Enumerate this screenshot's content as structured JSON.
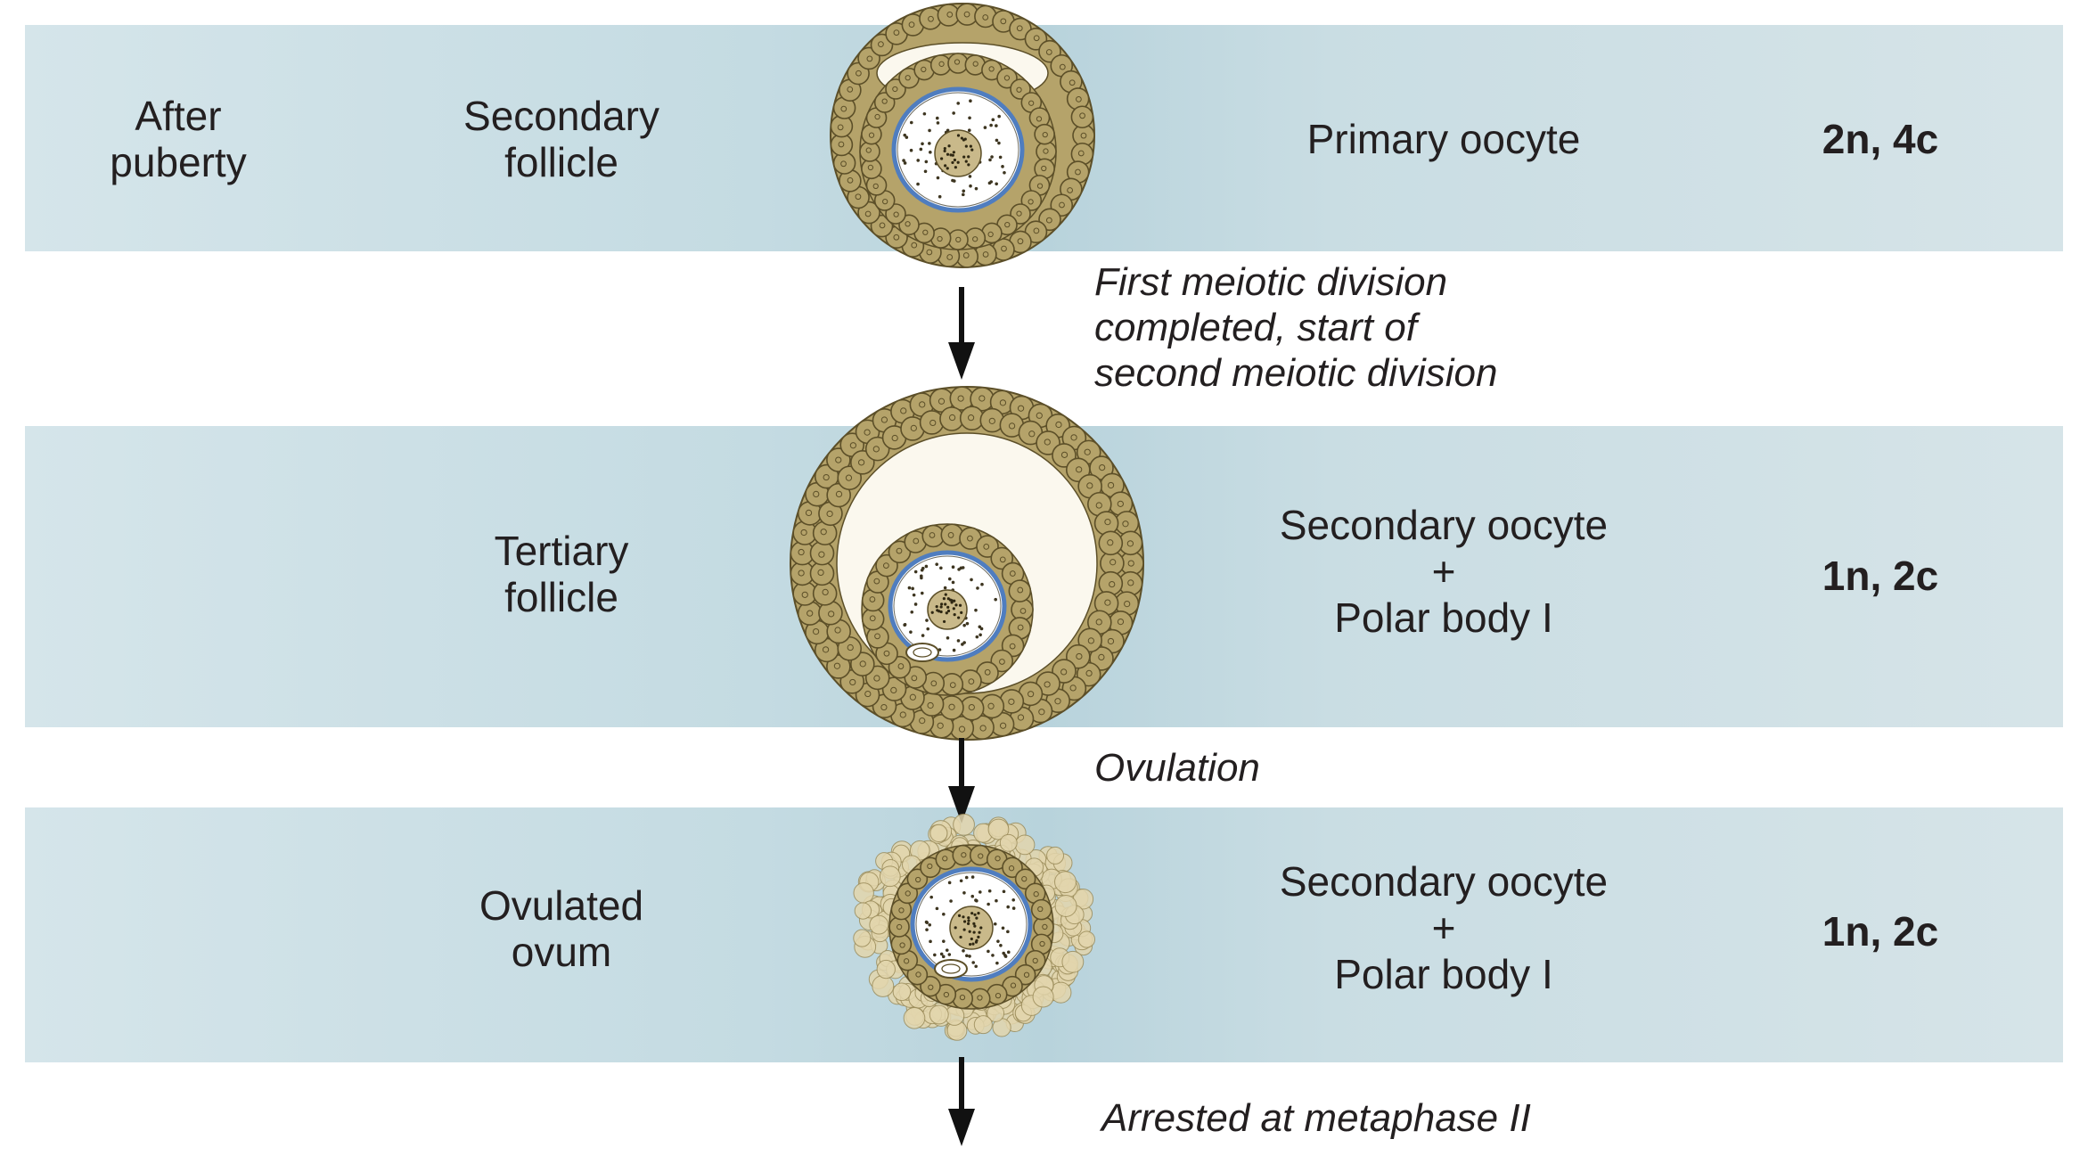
{
  "rows": [
    {
      "time": "After puberty",
      "time_lines": [
        "After",
        "puberty"
      ],
      "stage_lines": [
        "Secondary",
        "follicle"
      ],
      "cell_lines": [
        "Primary oocyte"
      ],
      "ploidy": "2n, 4c"
    },
    {
      "time": "",
      "stage_lines": [
        "Tertiary",
        "follicle"
      ],
      "cell_lines": [
        "Secondary oocyte",
        "+",
        "Polar body I"
      ],
      "ploidy": "1n, 2c"
    },
    {
      "time": "",
      "stage_lines": [
        "Ovulated",
        "ovum"
      ],
      "cell_lines": [
        "Secondary oocyte",
        "+",
        "Polar body I"
      ],
      "ploidy": "1n, 2c"
    }
  ],
  "transitions": [
    {
      "lines": [
        "First meiotic division",
        "completed, start of",
        "second meiotic division"
      ]
    },
    {
      "lines": [
        "Ovulation"
      ]
    },
    {
      "lines": [
        "Arrested at metaphase II"
      ]
    }
  ],
  "colors": {
    "band": "#c4dbe2",
    "granulosa_fill": "#b5a36a",
    "granulosa_stroke": "#5c4f28",
    "antrum": "#fbf8ee",
    "zona_pellucida": "#4f7dbf",
    "cumulus_fill": "#e3d6ad"
  },
  "icons": [
    "secondary-follicle-illustration",
    "tertiary-follicle-illustration",
    "ovulated-ovum-illustration",
    "down-arrow-icon"
  ]
}
